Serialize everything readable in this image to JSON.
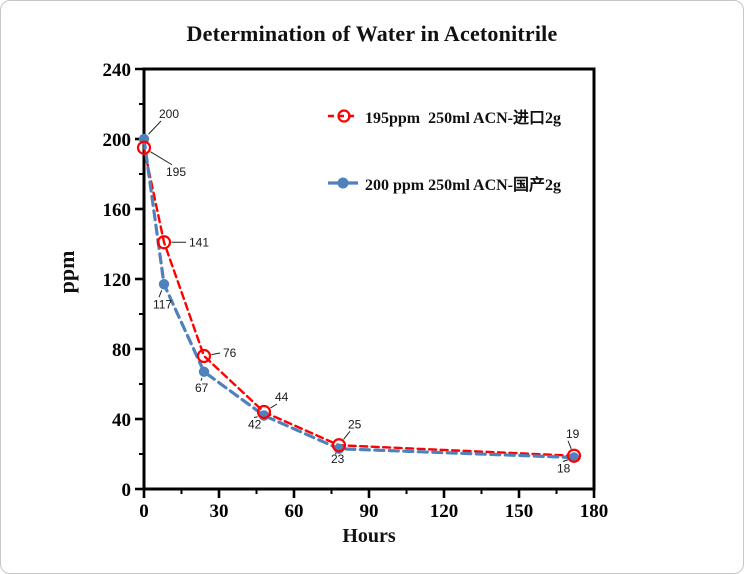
{
  "page": {
    "title": "Determination of Water in Acetonitrile"
  },
  "chart_data": {
    "type": "line",
    "title": "Determination of Water in Acetonitrile",
    "xlabel": "Hours",
    "ylabel": "ppm",
    "xlim": [
      0,
      180
    ],
    "xstep_major": 30,
    "xstep_minor": 15,
    "ylim": [
      0,
      240
    ],
    "ystep_major": 40,
    "ystep_minor": 20,
    "grid": false,
    "legend_position": "top-inside",
    "frame_color": "#000000",
    "series": [
      {
        "name": "195ppm  250ml ACN-进口2g",
        "color": "#fe0000",
        "marker": "open-circle",
        "line": "dashed",
        "x": [
          0,
          8,
          24,
          48,
          78,
          172
        ],
        "y": [
          195,
          141,
          76,
          44,
          25,
          19
        ],
        "label_offsets": [
          [
            22,
            28
          ],
          [
            25,
            4
          ],
          [
            19,
            1
          ],
          [
            11,
            -11
          ],
          [
            9,
            -17
          ],
          [
            -8,
            -18
          ]
        ]
      },
      {
        "name": "200 ppm 250ml ACN-国产2g",
        "color": "#4f81bd",
        "marker": "filled-circle",
        "line": "dashed",
        "x": [
          0,
          8,
          24,
          48,
          78,
          172
        ],
        "y": [
          200,
          117,
          67,
          42,
          23,
          18
        ],
        "label_offsets": [
          [
            15,
            -21
          ],
          [
            -11,
            24
          ],
          [
            -9,
            20
          ],
          [
            -16,
            13
          ],
          [
            -8,
            14
          ],
          [
            -17,
            15
          ]
        ]
      }
    ]
  }
}
